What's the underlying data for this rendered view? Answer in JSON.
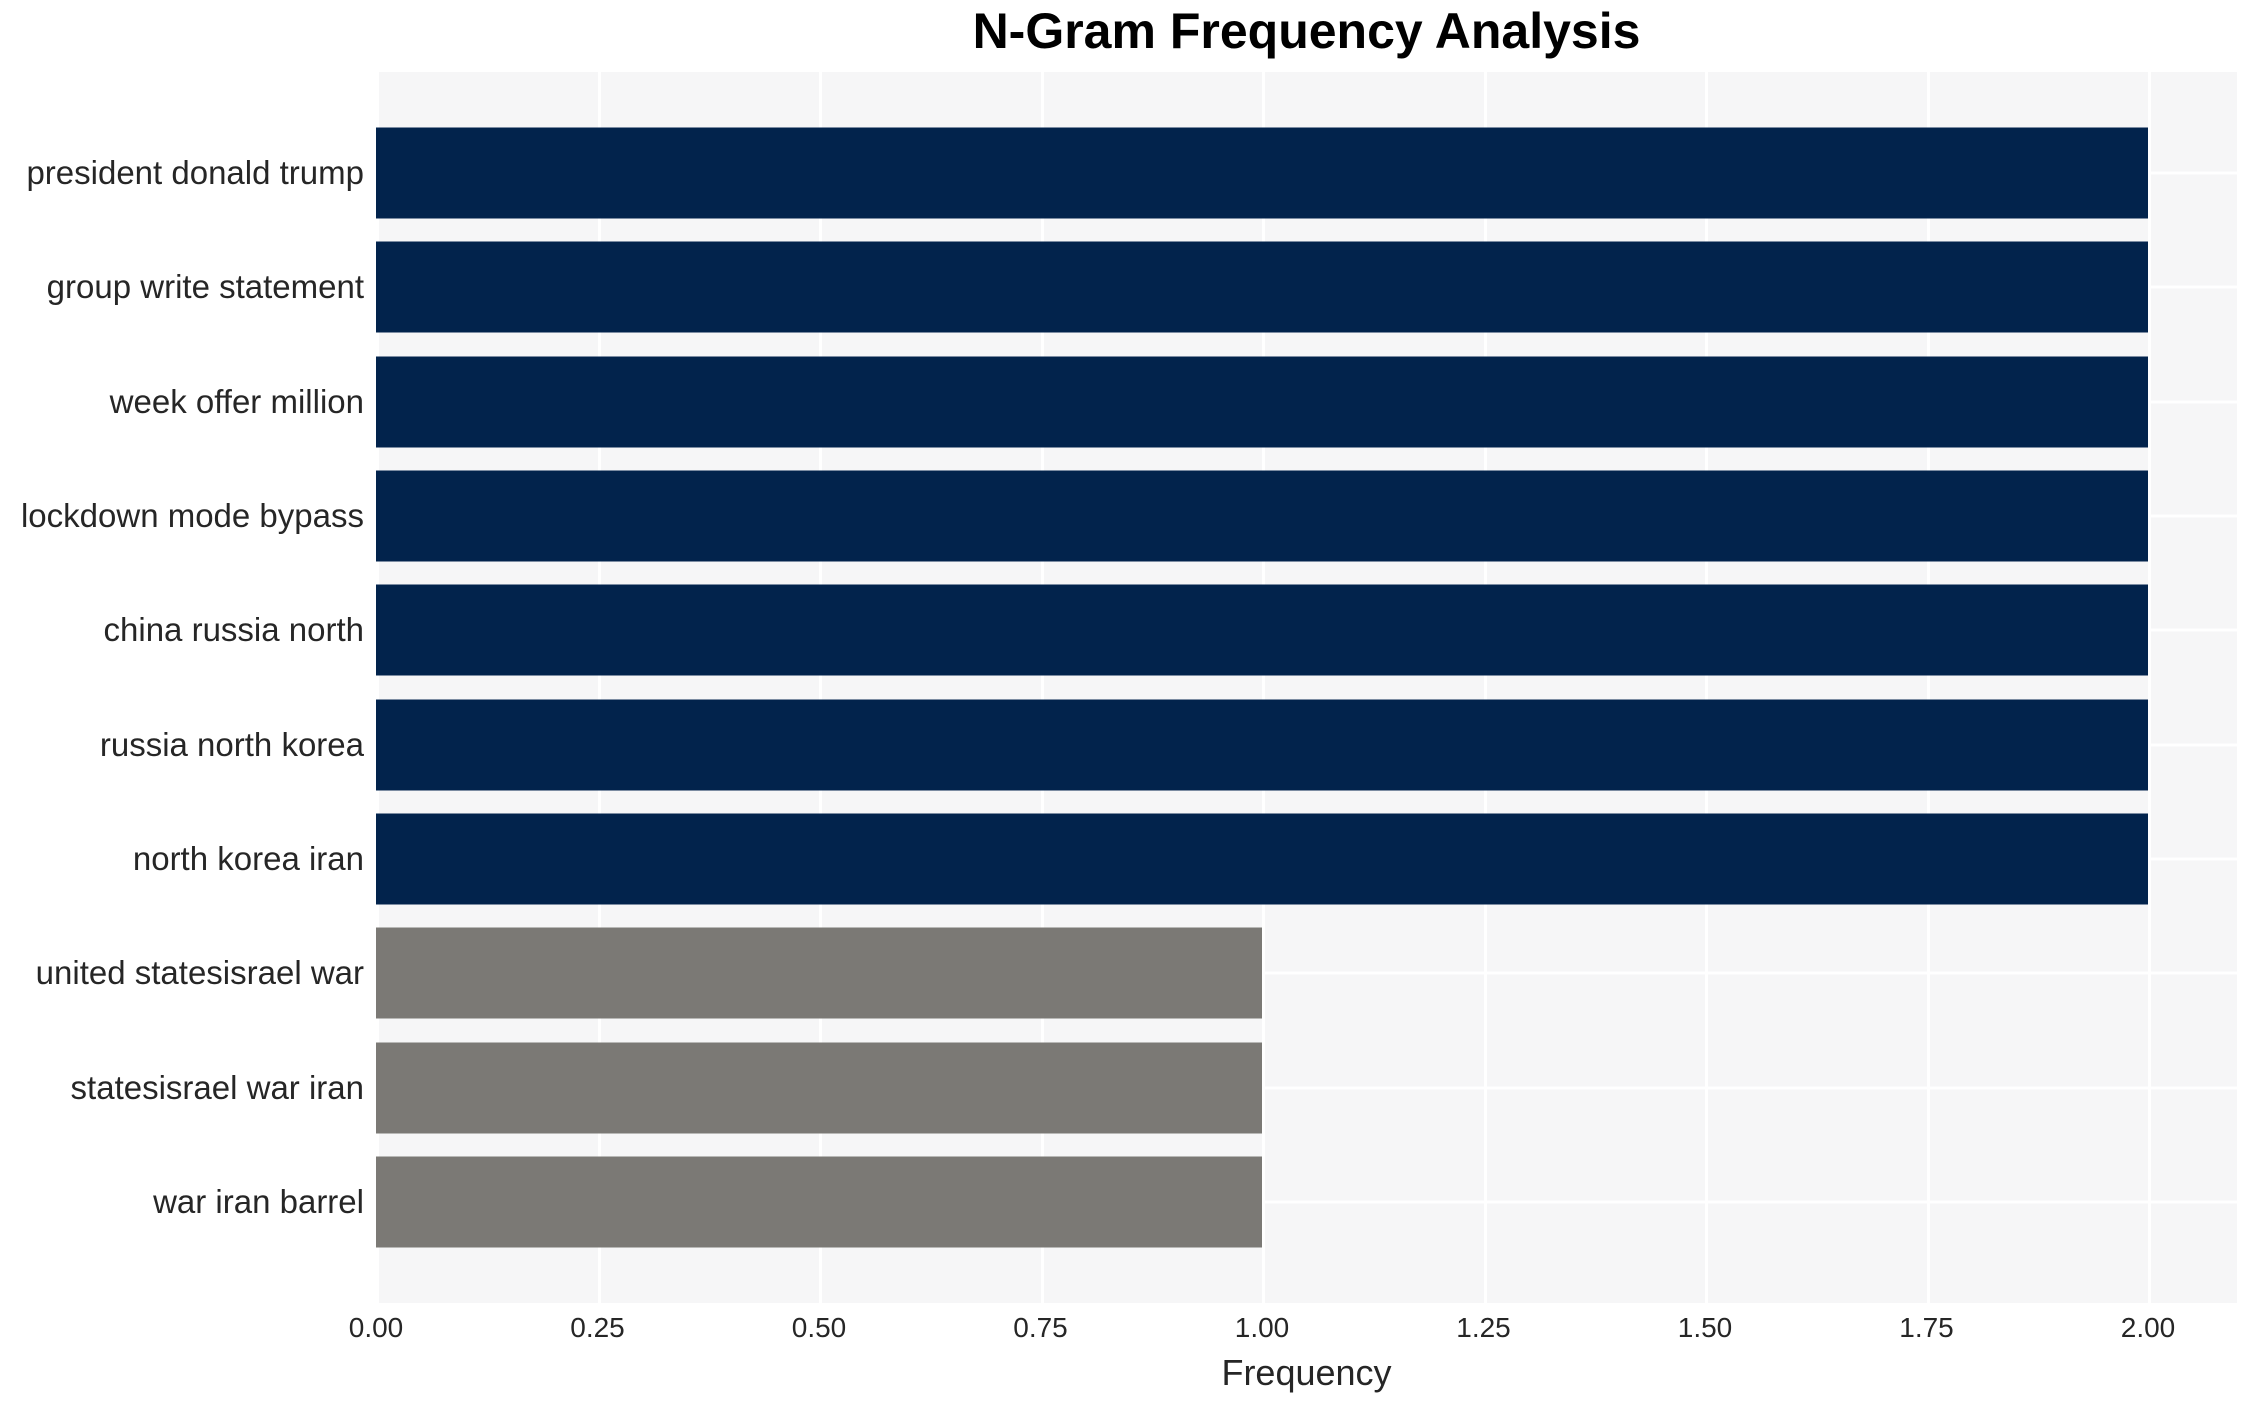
{
  "chart_data": {
    "type": "bar",
    "orientation": "horizontal",
    "title": "N-Gram Frequency Analysis",
    "xlabel": "Frequency",
    "ylabel": "",
    "xlim": [
      0,
      2.1
    ],
    "grid": true,
    "legend": false,
    "x_tick_labels": [
      "0.00",
      "0.25",
      "0.50",
      "0.75",
      "1.00",
      "1.25",
      "1.50",
      "1.75",
      "2.00"
    ],
    "categories": [
      "president donald trump",
      "group write statement",
      "week offer million",
      "lockdown mode bypass",
      "china russia north",
      "russia north korea",
      "north korea iran",
      "united statesisrael war",
      "statesisrael war iran",
      "war iran barrel"
    ],
    "values": [
      2,
      2,
      2,
      2,
      2,
      2,
      2,
      1,
      1,
      1
    ],
    "bar_colors": [
      "#02234c",
      "#02234c",
      "#02234c",
      "#02234c",
      "#02234c",
      "#02234c",
      "#02234c",
      "#7b7975",
      "#7b7975",
      "#7b7975"
    ]
  },
  "styles": {
    "bar_color_high": "#02234c",
    "bar_color_low": "#7b7975",
    "plot_background": "#f6f6f7",
    "grid_color": "#ffffff",
    "text_color": "#262626",
    "title_color": "#000000"
  }
}
